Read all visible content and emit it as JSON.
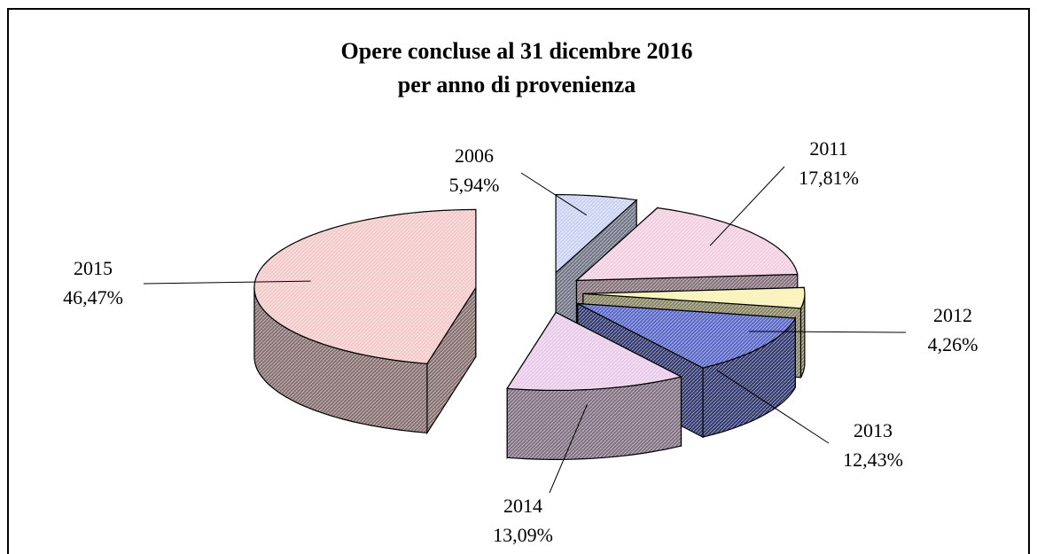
{
  "chart_data": {
    "type": "pie",
    "title": "Opere concluse al 31 dicembre 2016",
    "subtitle": "per anno di provenienza",
    "categories": [
      "2006",
      "2011",
      "2012",
      "2013",
      "2014",
      "2015"
    ],
    "values": [
      5.94,
      17.81,
      4.26,
      12.43,
      13.09,
      46.47
    ],
    "value_labels": [
      "5,94%",
      "17,81%",
      "4,26%",
      "12,43%",
      "13,09%",
      "46,47%"
    ],
    "colors": [
      "#c9d2f2",
      "#f2cede",
      "#f8f0b4",
      "#5866c8",
      "#e9cbe9",
      "#f3c9c9"
    ]
  }
}
